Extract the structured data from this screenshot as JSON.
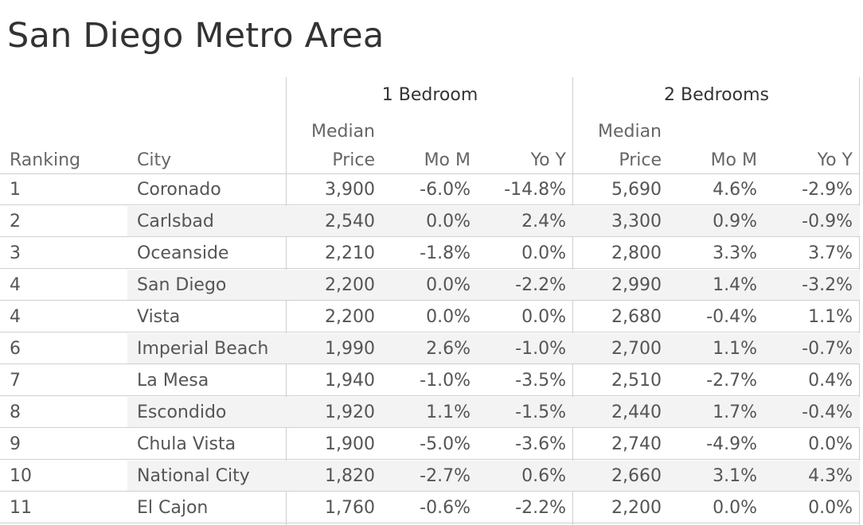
{
  "title": "San Diego Metro Area",
  "chart_data": {
    "type": "table",
    "groups": [
      "1 Bedroom",
      "2 Bedrooms"
    ],
    "columns": {
      "ranking": "Ranking",
      "city": "City",
      "median_top": "Median",
      "median_bottom": "Price",
      "mom": "Mo M",
      "yoy": "Yo Y"
    },
    "rows": [
      {
        "rank": "1",
        "city": "Coronado",
        "b1_price": "3,900",
        "b1_mom": "-6.0%",
        "b1_yoy": "-14.8%",
        "b2_price": "5,690",
        "b2_mom": "4.6%",
        "b2_yoy": "-2.9%"
      },
      {
        "rank": "2",
        "city": "Carlsbad",
        "b1_price": "2,540",
        "b1_mom": "0.0%",
        "b1_yoy": "2.4%",
        "b2_price": "3,300",
        "b2_mom": "0.9%",
        "b2_yoy": "-0.9%"
      },
      {
        "rank": "3",
        "city": "Oceanside",
        "b1_price": "2,210",
        "b1_mom": "-1.8%",
        "b1_yoy": "0.0%",
        "b2_price": "2,800",
        "b2_mom": "3.3%",
        "b2_yoy": "3.7%"
      },
      {
        "rank": "4",
        "city": "San Diego",
        "b1_price": "2,200",
        "b1_mom": "0.0%",
        "b1_yoy": "-2.2%",
        "b2_price": "2,990",
        "b2_mom": "1.4%",
        "b2_yoy": "-3.2%"
      },
      {
        "rank": "4",
        "city": "Vista",
        "b1_price": "2,200",
        "b1_mom": "0.0%",
        "b1_yoy": "0.0%",
        "b2_price": "2,680",
        "b2_mom": "-0.4%",
        "b2_yoy": "1.1%"
      },
      {
        "rank": "6",
        "city": "Imperial Beach",
        "b1_price": "1,990",
        "b1_mom": "2.6%",
        "b1_yoy": "-1.0%",
        "b2_price": "2,700",
        "b2_mom": "1.1%",
        "b2_yoy": "-0.7%"
      },
      {
        "rank": "7",
        "city": "La Mesa",
        "b1_price": "1,940",
        "b1_mom": "-1.0%",
        "b1_yoy": "-3.5%",
        "b2_price": "2,510",
        "b2_mom": "-2.7%",
        "b2_yoy": "0.4%"
      },
      {
        "rank": "8",
        "city": "Escondido",
        "b1_price": "1,920",
        "b1_mom": "1.1%",
        "b1_yoy": "-1.5%",
        "b2_price": "2,440",
        "b2_mom": "1.7%",
        "b2_yoy": "-0.4%"
      },
      {
        "rank": "9",
        "city": "Chula Vista",
        "b1_price": "1,900",
        "b1_mom": "-5.0%",
        "b1_yoy": "-3.6%",
        "b2_price": "2,740",
        "b2_mom": "-4.9%",
        "b2_yoy": "0.0%"
      },
      {
        "rank": "10",
        "city": "National City",
        "b1_price": "1,820",
        "b1_mom": "-2.7%",
        "b1_yoy": "0.6%",
        "b2_price": "2,660",
        "b2_mom": "3.1%",
        "b2_yoy": "4.3%"
      },
      {
        "rank": "11",
        "city": "El Cajon",
        "b1_price": "1,760",
        "b1_mom": "-0.6%",
        "b1_yoy": "-2.2%",
        "b2_price": "2,200",
        "b2_mom": "0.0%",
        "b2_yoy": "0.0%"
      }
    ]
  }
}
